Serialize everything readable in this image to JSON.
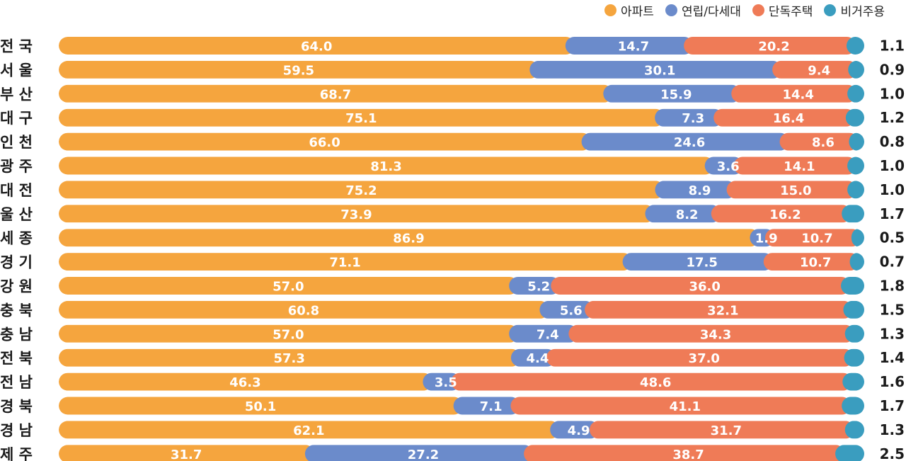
{
  "chart_data": {
    "type": "bar",
    "orientation": "horizontal",
    "stacked": true,
    "unit": "%",
    "legend_position": "top-right",
    "categories": [
      "전 국",
      "서 울",
      "부 산",
      "대 구",
      "인 천",
      "광 주",
      "대 전",
      "울 산",
      "세 종",
      "경 기",
      "강 원",
      "충 북",
      "충 남",
      "전 북",
      "전 남",
      "경 북",
      "경 남",
      "제 주"
    ],
    "series": [
      {
        "name": "아파트",
        "color": "#F5A53E",
        "values": [
          64.0,
          59.5,
          68.7,
          75.1,
          66.0,
          81.3,
          75.2,
          73.9,
          86.9,
          71.1,
          57.0,
          60.8,
          57.0,
          57.3,
          46.3,
          50.1,
          62.1,
          31.7
        ]
      },
      {
        "name": "연립/다세대",
        "color": "#6B8BCB",
        "values": [
          14.7,
          30.1,
          15.9,
          7.3,
          24.6,
          3.6,
          8.9,
          8.2,
          1.9,
          17.5,
          5.2,
          5.6,
          7.4,
          4.4,
          3.5,
          7.1,
          4.9,
          27.2
        ]
      },
      {
        "name": "단독주택",
        "color": "#EF7B57",
        "values": [
          20.2,
          9.4,
          14.4,
          16.4,
          8.6,
          14.1,
          15.0,
          16.2,
          10.7,
          10.7,
          36.0,
          32.1,
          34.3,
          37.0,
          48.6,
          41.1,
          31.7,
          38.7
        ]
      },
      {
        "name": "비거주용",
        "color": "#3A9DBF",
        "values": [
          1.1,
          0.9,
          1.0,
          1.2,
          0.8,
          1.0,
          1.0,
          1.7,
          0.5,
          0.7,
          1.8,
          1.5,
          1.3,
          1.4,
          1.6,
          1.7,
          1.3,
          2.5
        ]
      }
    ],
    "legend": [
      "아파트",
      "연립/다세대",
      "단독주택",
      "비거주용"
    ]
  }
}
